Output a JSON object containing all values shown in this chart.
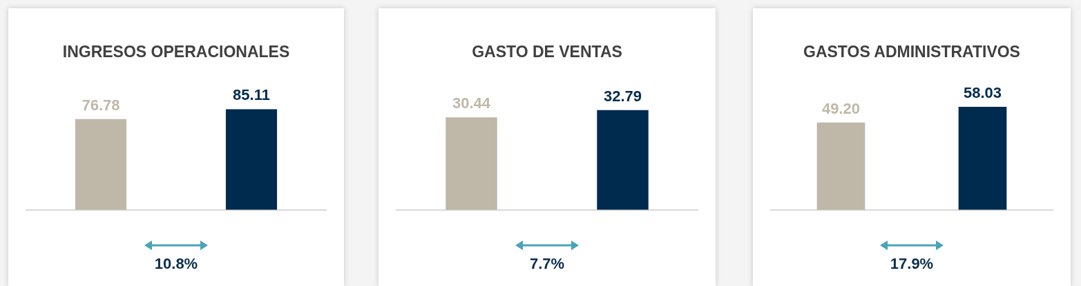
{
  "chart_data": [
    {
      "type": "bar",
      "title": "INGRESOS OPERACIONALES",
      "categories": [
        null,
        null
      ],
      "values": [
        76.78,
        85.11
      ],
      "value_labels": [
        "76.78",
        "85.11"
      ],
      "colors": [
        "#bfb8a8",
        "#002b4e"
      ],
      "annotations": [
        "10.8%"
      ],
      "grid": false,
      "legend": false
    },
    {
      "type": "bar",
      "title": "GASTO DE VENTAS",
      "categories": [
        null,
        null
      ],
      "values": [
        30.44,
        32.79
      ],
      "value_labels": [
        "30.44",
        "32.79"
      ],
      "colors": [
        "#bfb8a8",
        "#002b4e"
      ],
      "annotations": [
        "7.7%"
      ],
      "grid": false,
      "legend": false
    },
    {
      "type": "bar",
      "title": "GASTOS ADMINISTRATIVOS",
      "categories": [
        null,
        null
      ],
      "values": [
        49.2,
        58.03
      ],
      "value_labels": [
        "49.20",
        "58.03"
      ],
      "colors": [
        "#bfb8a8",
        "#002b4e"
      ],
      "annotations": [
        "17.9%"
      ],
      "grid": false,
      "legend": false
    }
  ]
}
